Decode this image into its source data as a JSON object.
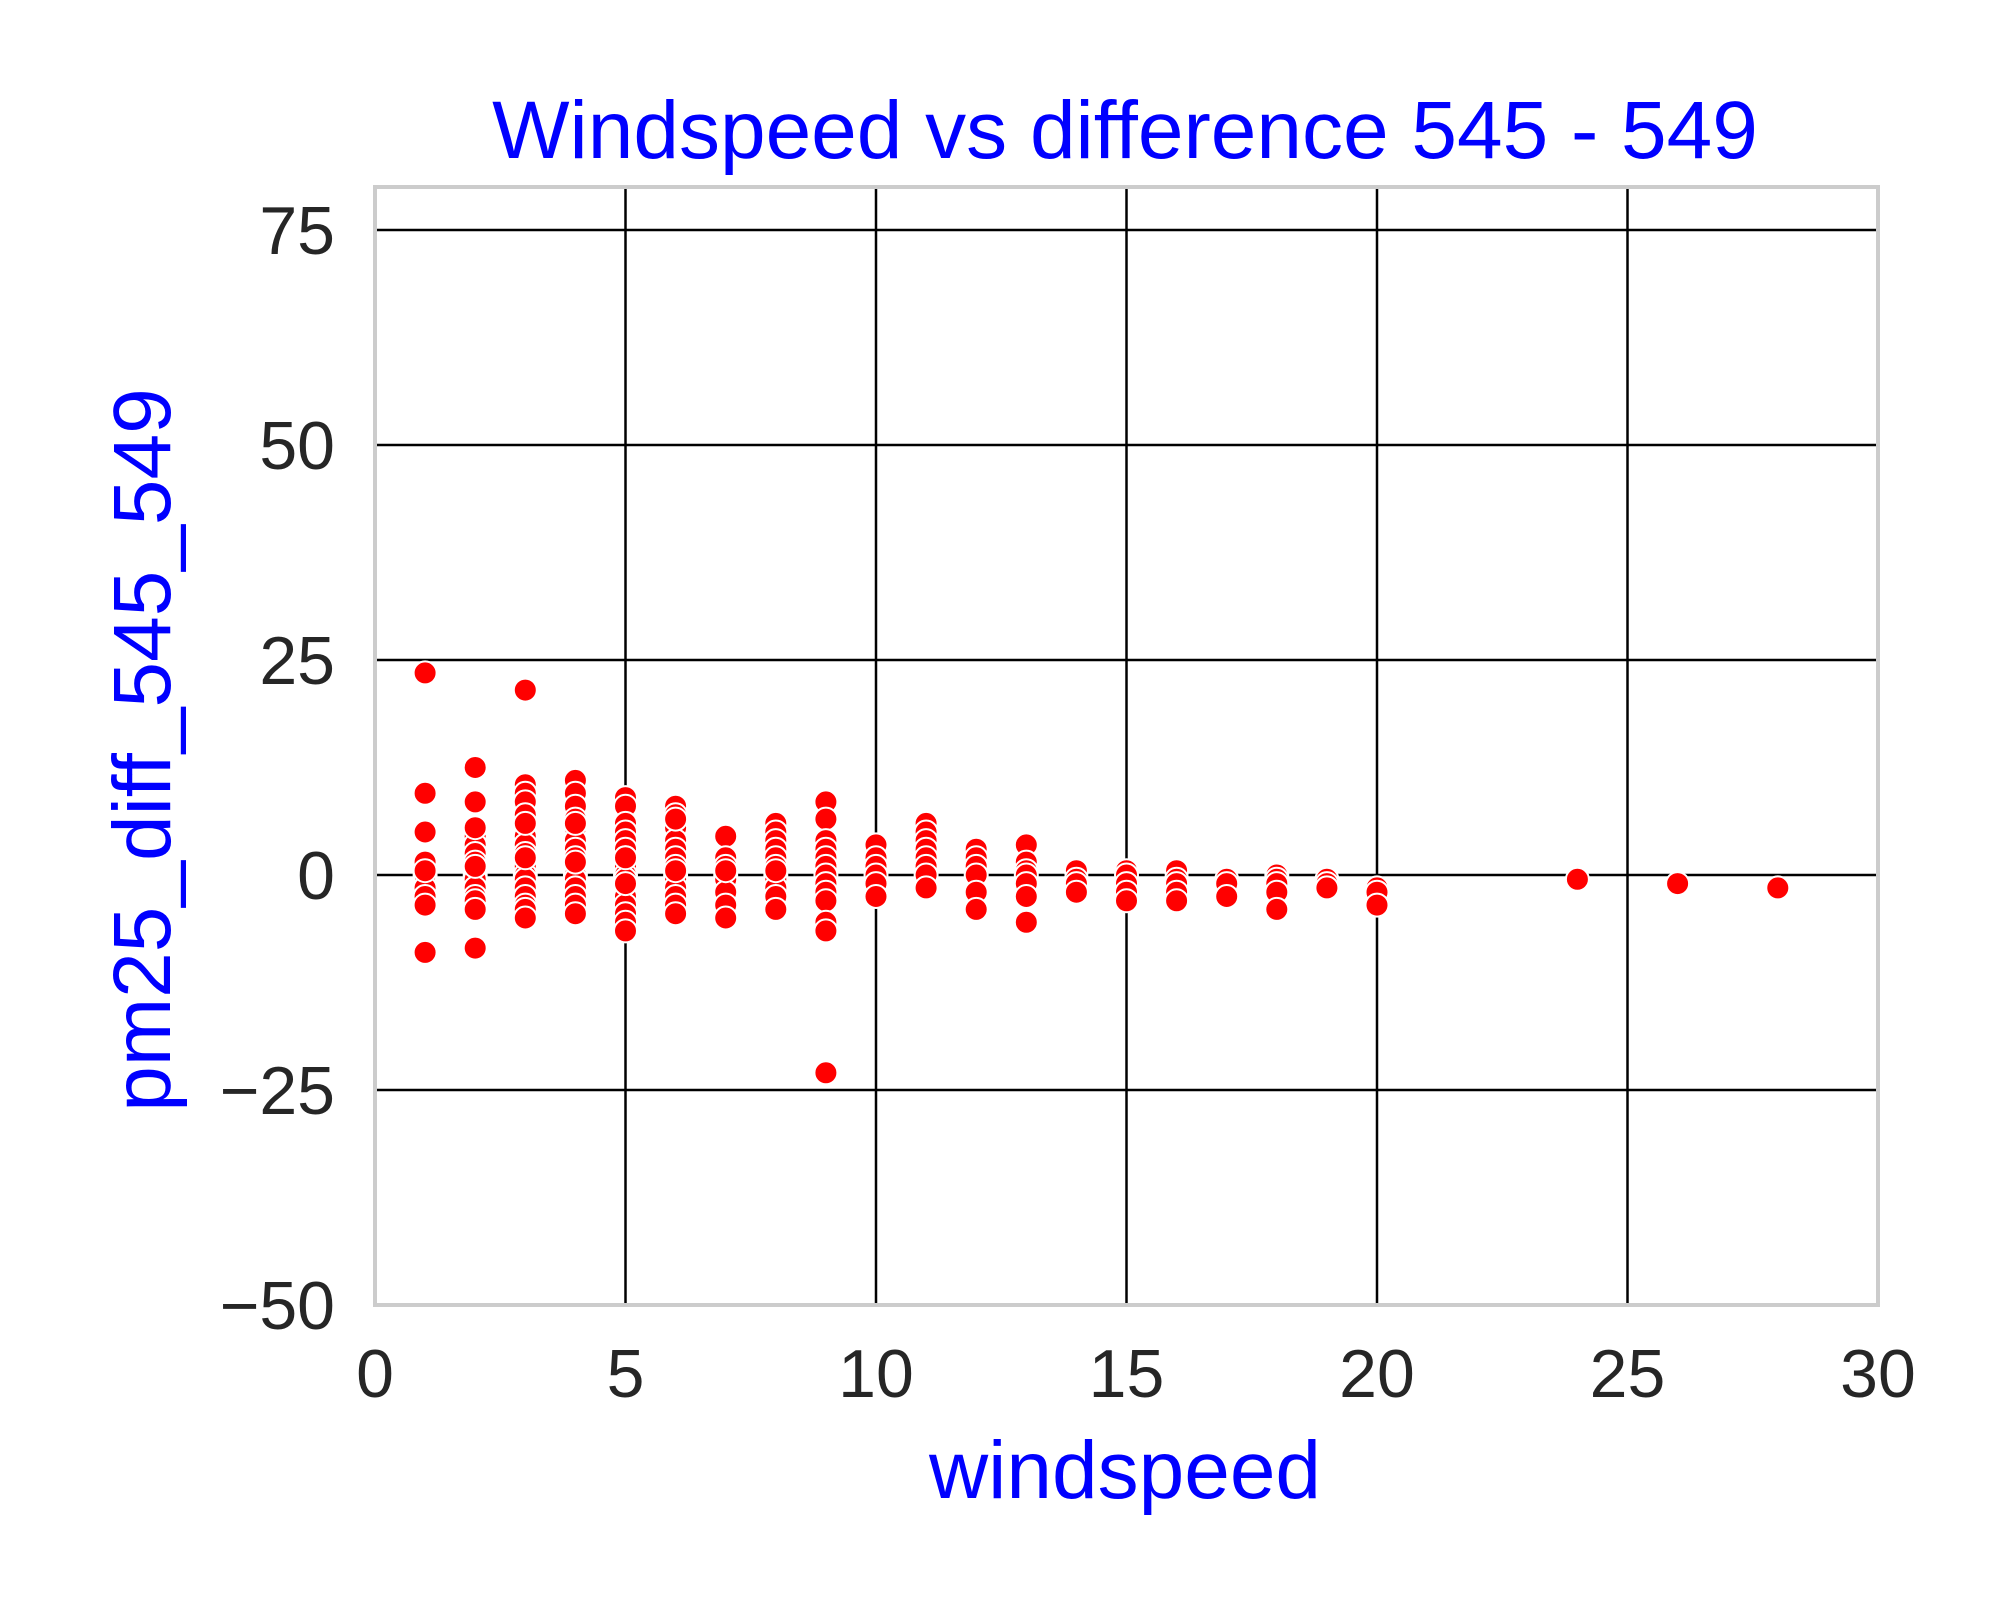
{
  "chart_data": {
    "type": "scatter",
    "title": "Windspeed vs difference 545 - 549",
    "xlabel": "windspeed",
    "ylabel": "pm25_diff_545_549",
    "xlim": [
      0,
      30
    ],
    "ylim": [
      -50,
      80
    ],
    "xticks": [
      0,
      5,
      10,
      15,
      20,
      25,
      30
    ],
    "xtick_labels": [
      "0",
      "5",
      "10",
      "15",
      "20",
      "25",
      "30"
    ],
    "yticks": [
      -50,
      -25,
      0,
      25,
      50,
      75
    ],
    "ytick_labels": [
      "−50",
      "−25",
      "0",
      "25",
      "50",
      "75"
    ],
    "grid": true,
    "colors": {
      "points": "#ff0000",
      "point_edge": "#ffffff",
      "grid": "#000000",
      "frame": "#cccccc",
      "title": "#0000ff",
      "axis_labels": "#0000ff",
      "ticks": "#262626"
    },
    "series": [
      {
        "x": [
          1,
          1,
          1,
          1,
          1,
          1,
          1,
          1,
          1,
          1,
          2,
          2,
          2,
          2,
          2,
          2,
          2,
          2,
          2,
          2,
          2,
          2,
          2,
          2,
          2,
          2,
          3,
          3,
          3,
          3,
          3,
          3,
          3,
          3,
          3,
          3,
          3,
          3,
          3,
          3,
          3,
          3,
          3,
          3,
          3,
          4,
          4,
          4,
          4,
          4,
          4,
          4,
          4,
          4,
          4,
          4,
          4,
          4,
          4,
          4,
          4,
          4,
          5,
          5,
          5,
          5,
          5,
          5,
          5,
          5,
          5,
          5,
          5,
          5,
          5,
          5,
          5,
          5,
          5,
          5,
          6,
          6,
          6,
          6,
          6,
          6,
          6,
          6,
          6,
          6,
          6,
          6,
          6,
          6,
          6,
          7,
          7,
          7,
          7,
          7,
          7,
          7,
          7,
          7,
          8,
          8,
          8,
          8,
          8,
          8,
          8,
          8,
          8,
          8,
          8,
          8,
          9,
          9,
          9,
          9,
          9,
          9,
          9,
          9,
          9,
          9,
          9,
          9,
          9,
          10,
          10,
          10,
          10,
          10,
          10,
          11,
          11,
          11,
          11,
          11,
          11,
          11,
          11,
          12,
          12,
          12,
          12,
          12,
          12,
          13,
          13,
          13,
          13,
          13,
          13,
          13,
          14,
          14,
          14,
          14,
          15,
          15,
          15,
          15,
          15,
          16,
          16,
          16,
          16,
          16,
          17,
          17,
          17,
          18,
          18,
          18,
          18,
          18,
          19,
          19,
          19,
          20,
          20,
          20,
          24,
          26,
          28
        ],
        "y": [
          23.5,
          9.5,
          5,
          1.5,
          0,
          -1.5,
          -2.5,
          -3.5,
          -9,
          0.5,
          12.5,
          8.5,
          4.5,
          3.5,
          2.5,
          1.5,
          0.5,
          0,
          -0.5,
          -1.5,
          -2.5,
          -3,
          -4,
          -8.5,
          5.5,
          1,
          21.5,
          10.5,
          9.5,
          8.5,
          7,
          5.5,
          4.5,
          3.5,
          2.5,
          1,
          0,
          -0.5,
          -1.5,
          -2.5,
          -3.5,
          -4,
          -5,
          6,
          2,
          11,
          9.5,
          8,
          6.5,
          5.5,
          4,
          3,
          2,
          0.5,
          0,
          -0.5,
          -1.5,
          -2.5,
          -3.5,
          -4.5,
          6,
          1.5,
          9,
          8,
          6,
          5,
          4,
          3,
          2,
          1,
          0,
          -0.5,
          -1.5,
          -2.5,
          -3.5,
          -4.5,
          -5.5,
          -6.5,
          2,
          -1,
          8,
          7,
          5.5,
          4,
          3,
          2,
          1,
          0,
          -0.5,
          -1.5,
          -2.5,
          -3.5,
          -4.5,
          0.5,
          6.5,
          4.5,
          2,
          1,
          0,
          -0.5,
          -2,
          -3.5,
          -5,
          0.5,
          6,
          5,
          4,
          3,
          2,
          1,
          0,
          -0.5,
          -1.5,
          -2.5,
          -4,
          0.5,
          8.5,
          6.5,
          4,
          3,
          2,
          1,
          0,
          -1,
          -2,
          -3,
          -5.5,
          -6.5,
          -23,
          3.5,
          2,
          1,
          0,
          -1,
          -2.5,
          6,
          5,
          4,
          3,
          2,
          1,
          0,
          -1.5,
          3,
          2,
          1,
          0,
          -2,
          -4,
          3.5,
          1.5,
          0.5,
          0,
          -1,
          -2.5,
          -5.5,
          0.5,
          -0.5,
          -1,
          -2,
          0.5,
          0,
          -1,
          -2,
          -3,
          0.5,
          -0.5,
          -1,
          -2,
          -3,
          -0.5,
          -1,
          -2.5,
          0,
          -0.5,
          -1,
          -2,
          -4,
          -0.5,
          -1,
          -1.5,
          -1.5,
          -2,
          -3.5,
          -0.5,
          -1,
          -1.5
        ]
      }
    ]
  }
}
